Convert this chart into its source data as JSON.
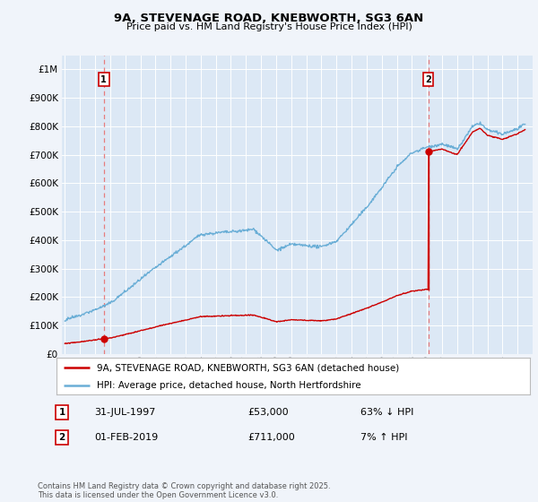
{
  "title": "9A, STEVENAGE ROAD, KNEBWORTH, SG3 6AN",
  "subtitle": "Price paid vs. HM Land Registry's House Price Index (HPI)",
  "legend_line1": "9A, STEVENAGE ROAD, KNEBWORTH, SG3 6AN (detached house)",
  "legend_line2": "HPI: Average price, detached house, North Hertfordshire",
  "annotation1_date": "31-JUL-1997",
  "annotation1_price": "£53,000",
  "annotation1_hpi": "63% ↓ HPI",
  "annotation2_date": "01-FEB-2019",
  "annotation2_price": "£711,000",
  "annotation2_hpi": "7% ↑ HPI",
  "footnote": "Contains HM Land Registry data © Crown copyright and database right 2025.\nThis data is licensed under the Open Government Licence v3.0.",
  "hpi_color": "#6aaed6",
  "price_color": "#cc0000",
  "dashed_line_color": "#e87070",
  "background_color": "#f0f4fa",
  "plot_bg_color": "#dce8f5",
  "sale1_year": 1997.58,
  "sale1_price": 53000,
  "sale2_year": 2019.08,
  "sale2_price": 711000,
  "ylim_max": 1050000,
  "xmin": 1994.8,
  "xmax": 2026.0
}
